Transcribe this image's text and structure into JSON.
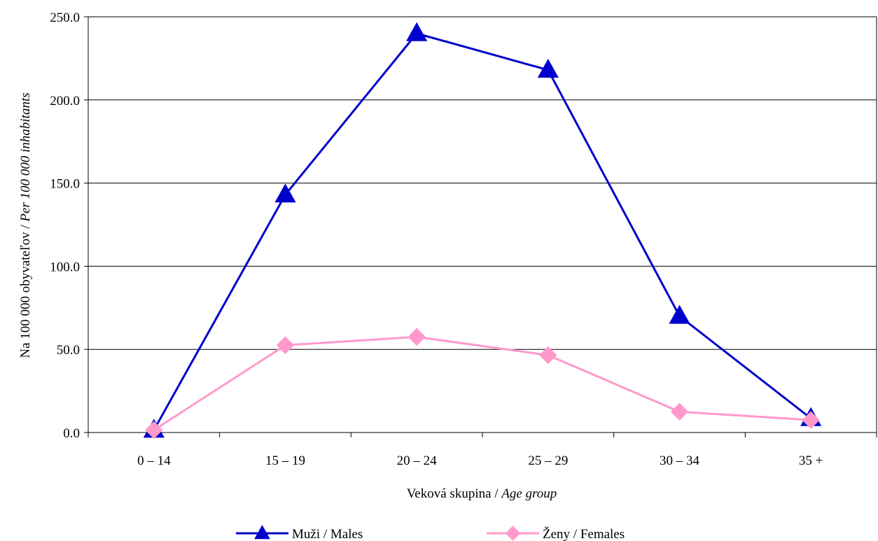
{
  "chart_data": {
    "type": "line",
    "title": "",
    "categories": [
      "0 – 14",
      "15 – 19",
      "20 – 24",
      "25 – 29",
      "30 – 34",
      "35 +"
    ],
    "series": [
      {
        "name": "Muži / Males",
        "values": [
          1.5,
          143.0,
          240.0,
          218.0,
          70.0,
          8.5
        ],
        "color": "#0000CC",
        "marker": "triangle"
      },
      {
        "name": "Ženy / Females",
        "values": [
          1.5,
          52.5,
          57.5,
          46.5,
          12.5,
          7.5
        ],
        "color": "#FF99CC",
        "marker": "diamond"
      }
    ],
    "xlabel_plain": "Veková skupina / ",
    "xlabel_italic": "Age group",
    "ylabel_plain": "Na 100 000 obyvateľov / ",
    "ylabel_italic": "Per 100 000 inhabitants",
    "ylim": [
      0,
      250
    ],
    "yticks": [
      "0.0",
      "50.0",
      "100.0",
      "150.0",
      "200.0",
      "250.0"
    ],
    "ytick_values": [
      0,
      50,
      100,
      150,
      200,
      250
    ],
    "grid": "horizontal",
    "legend_position": "bottom"
  }
}
